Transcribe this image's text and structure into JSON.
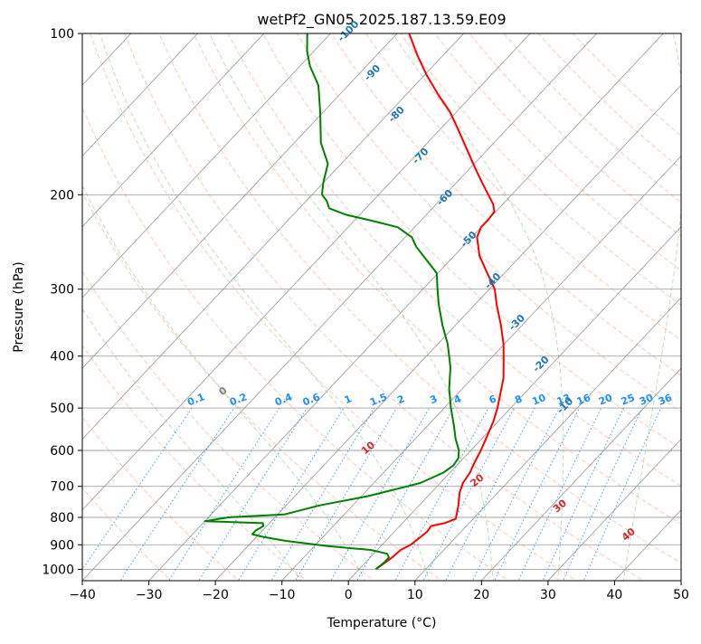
{
  "chart_data": {
    "type": "line",
    "subtype": "skew-t log-p diagram",
    "title": "wetPf2_GN05.2025.187.13.59.E09",
    "xlabel": "Temperature (°C)",
    "ylabel": "Pressure (hPa)",
    "xlim": [
      -40,
      50
    ],
    "ylim": [
      1050,
      100
    ],
    "yscale": "log",
    "x_ticks": [
      -40,
      -30,
      -20,
      -10,
      0,
      10,
      20,
      30,
      40,
      50
    ],
    "y_ticks": [
      1000,
      900,
      800,
      700,
      600,
      500,
      400,
      300,
      200,
      100
    ],
    "grid": true,
    "series": [
      {
        "role": "temperature",
        "color": "#ff0000",
        "points": [
          [
            1000,
            2.5
          ],
          [
            975,
            2.9
          ],
          [
            950,
            3.3
          ],
          [
            920,
            3.5
          ],
          [
            900,
            4.3
          ],
          [
            875,
            4.6
          ],
          [
            850,
            4.9
          ],
          [
            830,
            4.7
          ],
          [
            820,
            6.3
          ],
          [
            805,
            7.4
          ],
          [
            790,
            6.9
          ],
          [
            760,
            5.9
          ],
          [
            720,
            4.3
          ],
          [
            690,
            3.4
          ],
          [
            660,
            3.0
          ],
          [
            630,
            2.2
          ],
          [
            600,
            1.5
          ],
          [
            570,
            0.6
          ],
          [
            530,
            -0.7
          ],
          [
            500,
            -2.0
          ],
          [
            470,
            -3.6
          ],
          [
            440,
            -5.3
          ],
          [
            410,
            -7.6
          ],
          [
            380,
            -10.1
          ],
          [
            350,
            -13.2
          ],
          [
            320,
            -16.8
          ],
          [
            300,
            -19.2
          ],
          [
            280,
            -22.6
          ],
          [
            260,
            -26.2
          ],
          [
            240,
            -29.2
          ],
          [
            230,
            -30.0
          ],
          [
            222,
            -30.0
          ],
          [
            215,
            -30.2
          ],
          [
            208,
            -31.5
          ],
          [
            200,
            -33.5
          ],
          [
            190,
            -36.1
          ],
          [
            180,
            -38.8
          ],
          [
            165,
            -43.0
          ],
          [
            150,
            -47.6
          ],
          [
            140,
            -51.0
          ],
          [
            130,
            -55.2
          ],
          [
            120,
            -59.5
          ],
          [
            110,
            -63.8
          ],
          [
            100,
            -68.2
          ]
        ]
      },
      {
        "role": "dewpoint",
        "color": "#008000",
        "points": [
          [
            1000,
            2.5
          ],
          [
            970,
            2.8
          ],
          [
            950,
            2.8
          ],
          [
            935,
            2.0
          ],
          [
            920,
            -1.0
          ],
          [
            905,
            -8.0
          ],
          [
            885,
            -15.0
          ],
          [
            870,
            -19.0
          ],
          [
            860,
            -21.0
          ],
          [
            845,
            -21.0
          ],
          [
            830,
            -20.5
          ],
          [
            820,
            -21.0
          ],
          [
            813,
            -30.0
          ],
          [
            800,
            -27.0
          ],
          [
            790,
            -19.0
          ],
          [
            760,
            -15.0
          ],
          [
            730,
            -9.0
          ],
          [
            700,
            -4.5
          ],
          [
            690,
            -3.0
          ],
          [
            660,
            -1.0
          ],
          [
            640,
            -0.5
          ],
          [
            620,
            -0.8
          ],
          [
            600,
            -1.8
          ],
          [
            570,
            -4.0
          ],
          [
            540,
            -6.0
          ],
          [
            500,
            -9.0
          ],
          [
            460,
            -12.0
          ],
          [
            420,
            -14.8
          ],
          [
            380,
            -18.5
          ],
          [
            350,
            -22.0
          ],
          [
            320,
            -25.5
          ],
          [
            300,
            -27.8
          ],
          [
            280,
            -30.2
          ],
          [
            265,
            -33.5
          ],
          [
            250,
            -37.0
          ],
          [
            240,
            -39.0
          ],
          [
            230,
            -42.5
          ],
          [
            224,
            -47.0
          ],
          [
            218,
            -52.0
          ],
          [
            212,
            -55.5
          ],
          [
            205,
            -57.0
          ],
          [
            200,
            -58.5
          ],
          [
            190,
            -60.0
          ],
          [
            175,
            -62.0
          ],
          [
            160,
            -66.0
          ],
          [
            140,
            -70.5
          ],
          [
            125,
            -74.5
          ],
          [
            115,
            -78.5
          ],
          [
            108,
            -81.0
          ],
          [
            100,
            -83.5
          ]
        ]
      }
    ],
    "annotations": {
      "dry_adiabats": [
        -30,
        -20,
        -10,
        0,
        10,
        20,
        30,
        40,
        50,
        60,
        70,
        80,
        90,
        100,
        110,
        120,
        130,
        140,
        150,
        160,
        170
      ],
      "moist_adiabats": [
        -10,
        0,
        10,
        20,
        30,
        40
      ],
      "moist_adiabat_labels": [
        {
          "theta": 0,
          "text": "0",
          "color": "#808080"
        },
        {
          "theta": 10,
          "text": "10",
          "color": "#d62728"
        },
        {
          "theta": 20,
          "text": "20",
          "color": "#d62728"
        },
        {
          "theta": 30,
          "text": "30",
          "color": "#d62728"
        },
        {
          "theta": 40,
          "text": "40",
          "color": "#d62728"
        }
      ],
      "mixing_ratio_lines": [
        "0.1",
        "0.2",
        "0.4",
        "0.6",
        "1",
        "1.5",
        "2",
        "3",
        "4",
        "6",
        "8",
        "10",
        "13",
        "16",
        "20",
        "25",
        "30",
        "36"
      ],
      "mixing_ratio_color": "#1e90ff",
      "frost_point_lines": [
        "-100",
        "-90",
        "-80",
        "-70",
        "-60",
        "-50",
        "-40",
        "-30",
        "-20",
        "-10"
      ],
      "frost_point_color": "#1f77b4"
    }
  }
}
